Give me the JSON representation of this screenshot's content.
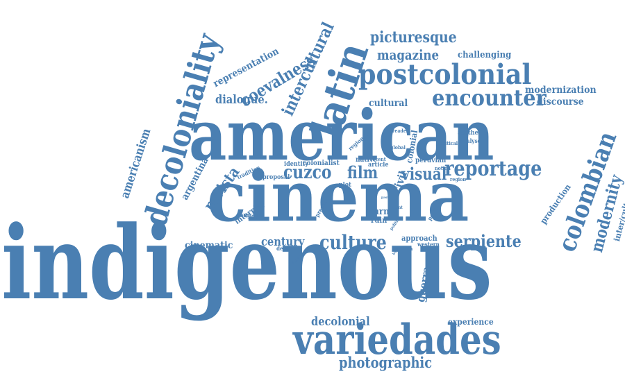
{
  "color": "#4a7fb2",
  "words": [
    {
      "id": "indigenous",
      "text": "indigenous"
    },
    {
      "id": "cinema",
      "text": "cinema"
    },
    {
      "id": "american",
      "text": "american"
    },
    {
      "id": "variedades",
      "text": "variedades"
    },
    {
      "id": "postcolonial",
      "text": "postcolonial"
    },
    {
      "id": "decoloniality",
      "text": "decoloniality"
    },
    {
      "id": "latin",
      "text": "latin"
    },
    {
      "id": "encounter",
      "text": "encounter"
    },
    {
      "id": "reportage",
      "text": "reportage"
    },
    {
      "id": "colombian",
      "text": "colombian"
    },
    {
      "id": "cuzco",
      "text": "cuzco"
    },
    {
      "id": "culture",
      "text": "culture"
    },
    {
      "id": "intercultural",
      "text": "intercultural"
    },
    {
      "id": "coevalness",
      "text": "coevalness"
    },
    {
      "id": "picturesque",
      "text": "picturesque"
    },
    {
      "id": "magazine",
      "text": "magazine"
    },
    {
      "id": "modernity",
      "text": "modernity"
    },
    {
      "id": "serpiente",
      "text": "serpiente"
    },
    {
      "id": "film",
      "text": "film"
    },
    {
      "id": "visual",
      "text": "visual"
    },
    {
      "id": "photographic",
      "text": "photographic"
    },
    {
      "id": "decolonial",
      "text": "decolonial"
    },
    {
      "id": "revista",
      "text": "revista"
    },
    {
      "id": "dialogue",
      "text": "dialogue."
    },
    {
      "id": "americanism",
      "text": "americanism"
    },
    {
      "id": "representation",
      "text": "representation"
    },
    {
      "id": "challenging",
      "text": "challenging"
    },
    {
      "id": "modernization",
      "text": "modernization"
    },
    {
      "id": "discourse",
      "text": "discourse"
    },
    {
      "id": "cultural",
      "text": "cultural"
    },
    {
      "id": "century",
      "text": "century"
    },
    {
      "id": "cinematic",
      "text": "cinematic"
    },
    {
      "id": "argentina",
      "text": "argentina"
    },
    {
      "id": "guerra",
      "text": "guerra"
    },
    {
      "id": "civil",
      "text": "civil"
    },
    {
      "id": "production",
      "text": "production"
    },
    {
      "id": "inter-cultural",
      "text": "inter/cultural"
    },
    {
      "id": "experience",
      "text": "experience"
    },
    {
      "id": "turn",
      "text": "turn"
    },
    {
      "id": "ruin",
      "text": "ruin"
    },
    {
      "id": "approach",
      "text": "approach"
    },
    {
      "id": "interplay",
      "text": "interplay"
    },
    {
      "id": "colonialist",
      "text": "colonialist"
    },
    {
      "id": "native",
      "text": "native"
    },
    {
      "id": "identity",
      "text": "identity"
    },
    {
      "id": "peruvian",
      "text": "peruvian"
    },
    {
      "id": "aesthetic",
      "text": "aesthetic"
    },
    {
      "id": "analyse",
      "text": "analyse"
    },
    {
      "id": "regional",
      "text": "regional"
    },
    {
      "id": "colonial",
      "text": "colonial"
    },
    {
      "id": "reader",
      "text": "reader"
    },
    {
      "id": "global",
      "text": "global"
    },
    {
      "id": "critical",
      "text": "critical"
    },
    {
      "id": "tradition",
      "text": "tradition"
    },
    {
      "id": "proposal",
      "text": "proposal"
    },
    {
      "id": "article",
      "text": "article"
    },
    {
      "id": "recent",
      "text": "recent"
    },
    {
      "id": "notion",
      "text": "notion"
    },
    {
      "id": "region",
      "text": "region"
    },
    {
      "id": "plot",
      "text": "plot"
    },
    {
      "id": "engage",
      "text": "engage"
    },
    {
      "id": "present",
      "text": "present"
    },
    {
      "id": "political",
      "text": "political"
    },
    {
      "id": "point",
      "text": "point"
    },
    {
      "id": "politic",
      "text": "politic"
    },
    {
      "id": "chiara",
      "text": "chiara"
    },
    {
      "id": "western",
      "text": "western"
    },
    {
      "id": "decade",
      "text": "decade"
    },
    {
      "id": "director",
      "text": "director"
    },
    {
      "id": "past",
      "text": "past"
    },
    {
      "id": "form",
      "text": "form"
    },
    {
      "id": "book",
      "text": "book"
    }
  ]
}
